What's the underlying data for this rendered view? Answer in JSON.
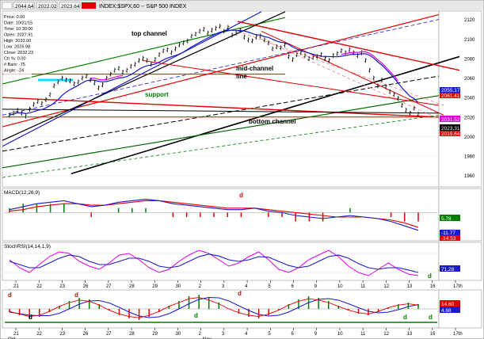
{
  "window": {
    "title": "INDEX:$SPX,60 -- S&P 500 INDEX",
    "quote": [
      "2044.64",
      "2022.02",
      "2023.64"
    ]
  },
  "info_panel": [
    "Price: 0.00",
    "Date: 10/21/15",
    "Time: 10:30:00",
    "Open: 2027.91",
    "High: 2033.00",
    "Low: 2026.98",
    "Close: 2032.23",
    "Ctr %: 0.00",
    "# Bars: -75",
    "Angle: -24"
  ],
  "annotations": {
    "top_channel": "top channel",
    "mid_channel": "mid-channel",
    "mid_channel_2": "line",
    "bottom_channel": "bottom channel",
    "support": "support"
  },
  "colors": {
    "price": "#000000",
    "red": "#e00000",
    "blue": "#1a1acc",
    "green": "#008000",
    "magenta": "#e000e0",
    "cyan": "#00e0ff",
    "dark_green": "#006400"
  },
  "panel_labels": {
    "macd": "MACD(12,26,9)",
    "stoch": "StochRSI(14,14,1,9)"
  },
  "panel_marks": {
    "macd_d": "d",
    "stoch_d": "d",
    "osc_d1": "d",
    "osc_d2": "d",
    "osc_d3": "d",
    "osc_d4": "d",
    "osc_d5": "d",
    "osc_d6": "d",
    "osc_d7": "d"
  },
  "chart_data": {
    "type": "line",
    "title": "INDEX:$SPX,60 -- S&P 500 INDEX",
    "x_tick_labels": [
      "21",
      "22",
      "23",
      "26",
      "27",
      "28",
      "29",
      "30",
      "2",
      "3",
      "4",
      "5",
      "6",
      "9",
      "10",
      "11",
      "12",
      "13",
      "16",
      "17th"
    ],
    "month_labels": [
      "Oct",
      "Nov"
    ],
    "y_ticks": [
      1960,
      1980,
      2000,
      2020,
      2040,
      2060,
      2080,
      2100,
      2120
    ],
    "ylim": [
      1950,
      2127
    ],
    "price_badges": {
      "red_1": "2061.41",
      "blue_1": "2055.17",
      "magenta_1": "2031.52",
      "black_1": "2023.31",
      "red_2": "2019.64"
    },
    "price_series": {
      "name": "$SPX hourly",
      "values": [
        2022,
        2024,
        2027,
        2024,
        2021,
        2028,
        2033,
        2036,
        2034,
        2038,
        2043,
        2052,
        2056,
        2060,
        2058,
        2057,
        2054,
        2056,
        2060,
        2062,
        2058,
        2055,
        2050,
        2053,
        2060,
        2064,
        2068,
        2070,
        2066,
        2068,
        2072,
        2074,
        2078,
        2080,
        2078,
        2074,
        2079,
        2084,
        2088,
        2089,
        2086,
        2090,
        2094,
        2096,
        2098,
        2103,
        2105,
        2108,
        2110,
        2106,
        2109,
        2111,
        2113,
        2108,
        2112,
        2104,
        2106,
        2109,
        2102,
        2099,
        2098,
        2102,
        2103,
        2099,
        2096,
        2090,
        2092,
        2091,
        2094,
        2082,
        2079,
        2084,
        2086,
        2083,
        2080,
        2081,
        2082,
        2084,
        2080,
        2078,
        2083,
        2085,
        2088,
        2086,
        2089,
        2086,
        2083,
        2086,
        2078,
        2068,
        2060,
        2052,
        2058,
        2051,
        2046,
        2043,
        2039,
        2032,
        2027,
        2024,
        2029,
        2023
      ]
    },
    "macd": {
      "ylim": [
        -18,
        12
      ],
      "legend": [
        "5.78",
        "-11.77",
        "-14.53"
      ],
      "macd_line": [
        2,
        4,
        6,
        7,
        8,
        6,
        4,
        5,
        7,
        8,
        9,
        8,
        6,
        5,
        4,
        3,
        2,
        2,
        3,
        1,
        0,
        -2,
        -3,
        -4,
        -3,
        -2,
        -3,
        -4,
        -6,
        -9,
        -12
      ],
      "signal_line": [
        1,
        2,
        4,
        5,
        6,
        6,
        5,
        5,
        6,
        7,
        8,
        8,
        7,
        6,
        5,
        4,
        3,
        3,
        3,
        2,
        1,
        0,
        -1,
        -2,
        -3,
        -3,
        -3,
        -4,
        -5,
        -7,
        -10
      ]
    },
    "stoch": {
      "ylim": [
        0,
        100
      ],
      "legend": [
        "71.28"
      ],
      "k": [
        60,
        35,
        20,
        45,
        70,
        85,
        80,
        55,
        40,
        30,
        50,
        75,
        80,
        60,
        35,
        20,
        30,
        55,
        75,
        90,
        80,
        60,
        40,
        50,
        70,
        85,
        60,
        30,
        20,
        35,
        60,
        75,
        90,
        70,
        40,
        20,
        10,
        30,
        50,
        30,
        15,
        10
      ],
      "d": [
        55,
        45,
        35,
        35,
        50,
        65,
        75,
        70,
        55,
        45,
        45,
        55,
        65,
        65,
        55,
        40,
        35,
        40,
        55,
        70,
        78,
        72,
        60,
        55,
        60,
        70,
        68,
        55,
        42,
        35,
        40,
        55,
        70,
        75,
        65,
        48,
        35,
        30,
        35,
        35,
        28,
        20
      ]
    },
    "oscillator": {
      "ylim": [
        -10,
        10
      ],
      "legend": [
        "14.60",
        "4.68"
      ],
      "histogram": [
        -2,
        -4,
        -6,
        -5,
        -2,
        2,
        5,
        7,
        6,
        3,
        -1,
        -4,
        -6,
        -7,
        -5,
        -2,
        2,
        5,
        8,
        9,
        7,
        4,
        0,
        -3,
        -5,
        -6,
        -4,
        -1,
        3,
        6,
        8,
        7,
        5,
        2,
        -1,
        -3,
        -4,
        -2,
        1,
        3,
        4,
        3
      ]
    }
  }
}
